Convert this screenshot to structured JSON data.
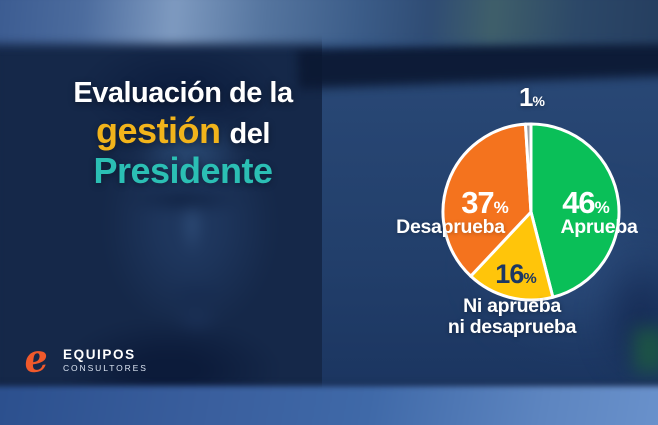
{
  "title": {
    "line1": "Evaluación de la",
    "line2_highlight": "gestión",
    "line2_rest": "del",
    "line3": "Presidente",
    "colors": {
      "line1": "#FFFFFF",
      "highlight": "#F2B41B",
      "line3": "#2BBFB4"
    }
  },
  "logo": {
    "mark": "e",
    "name": "EQUIPOS",
    "subtitle": "CONSULTORES",
    "colors": {
      "mark": "#F0592B",
      "text": "#FFFFFF"
    }
  },
  "chart_data": {
    "type": "pie",
    "title": "Evaluación de la gestión del Presidente",
    "unit": "%",
    "direction": "clockwise",
    "start_angle_deg": 0,
    "gap_color": "#FFFFFF",
    "legend_position": "labels-on-chart",
    "slices": [
      {
        "label": "Aprueba",
        "value": 46,
        "color": "#0ABF58",
        "label_color": "#FFFFFF"
      },
      {
        "label": "Ni aprueba ni desaprueba",
        "value": 16,
        "color": "#FFC50A",
        "label_color": "#1C3763"
      },
      {
        "label": "Desaprueba",
        "value": 37,
        "color": "#F4731E",
        "label_color": "#FFFFFF"
      },
      {
        "label": "",
        "value": 1,
        "color": "#9C9FA3",
        "label_color": "#FFFFFF"
      }
    ]
  },
  "pie_labels": {
    "neutral_line1": "Ni aprueba",
    "neutral_line2": "ni desaprueba"
  }
}
